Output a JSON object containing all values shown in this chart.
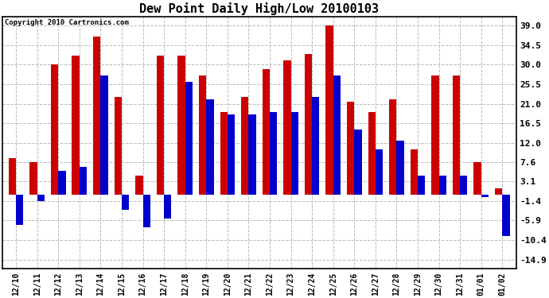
{
  "title": "Dew Point Daily High/Low 20100103",
  "copyright": "Copyright 2010 Cartronics.com",
  "dates": [
    "12/10",
    "12/11",
    "12/12",
    "12/13",
    "12/14",
    "12/15",
    "12/16",
    "12/17",
    "12/18",
    "12/19",
    "12/20",
    "12/21",
    "12/22",
    "12/23",
    "12/24",
    "12/25",
    "12/26",
    "12/27",
    "12/28",
    "12/29",
    "12/30",
    "12/31",
    "01/01",
    "01/02"
  ],
  "highs": [
    8.5,
    7.6,
    30.0,
    32.0,
    36.5,
    22.5,
    4.5,
    32.0,
    32.0,
    27.5,
    19.0,
    22.5,
    29.0,
    31.0,
    32.5,
    39.0,
    21.5,
    19.0,
    22.0,
    10.5,
    27.5,
    27.5,
    7.5,
    1.5
  ],
  "lows": [
    -7.0,
    -1.4,
    5.5,
    6.5,
    27.5,
    -3.5,
    -7.5,
    -5.5,
    26.0,
    22.0,
    18.5,
    18.5,
    19.0,
    19.0,
    22.5,
    27.5,
    15.0,
    10.5,
    12.5,
    4.5,
    4.5,
    4.5,
    -0.5,
    -9.5
  ],
  "bar_color_high": "#cc0000",
  "bar_color_low": "#0000cc",
  "bg_color": "#ffffff",
  "grid_color": "#bbbbbb",
  "title_fontsize": 11,
  "ylabel_fontsize": 8,
  "xlabel_fontsize": 7,
  "yticks": [
    -14.9,
    -10.4,
    -5.9,
    -1.4,
    3.1,
    7.6,
    12.0,
    16.5,
    21.0,
    25.5,
    30.0,
    34.5,
    39.0
  ],
  "ylim": [
    -17.0,
    41.0
  ]
}
